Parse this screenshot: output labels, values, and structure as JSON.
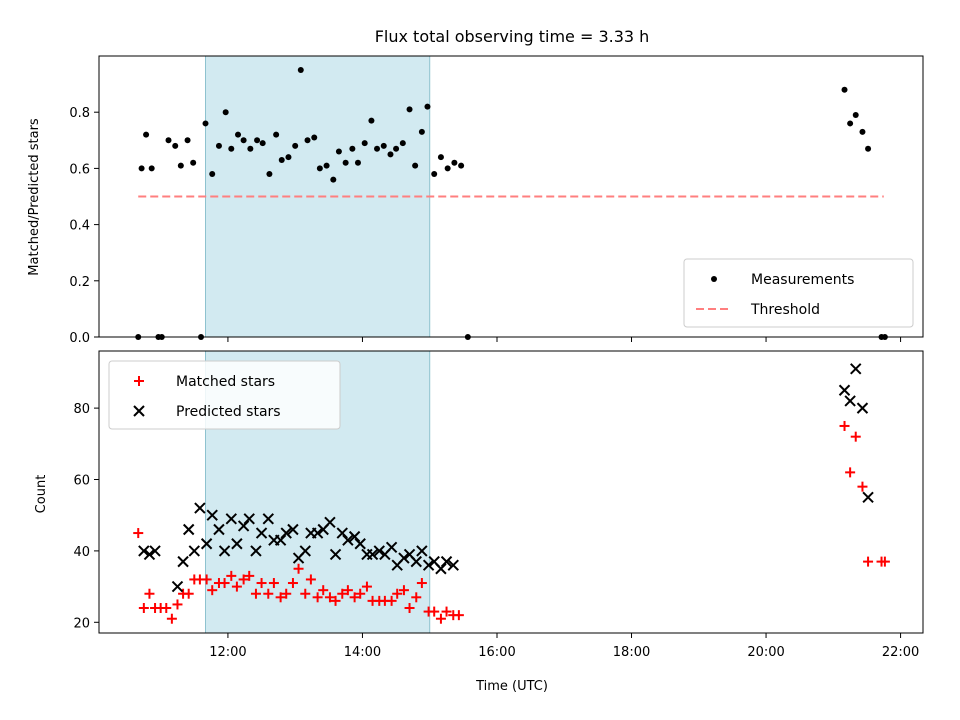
{
  "chart_data": [
    {
      "type": "scatter",
      "title": "Flux total observing time = 3.33 h",
      "xlabel": "",
      "ylabel": "Matched/Predicted stars",
      "xlim": [
        "10:05",
        "22:20"
      ],
      "ylim": [
        0,
        1.0
      ],
      "yticks": [
        "0.0",
        "0.2",
        "0.4",
        "0.6",
        "0.8"
      ],
      "shaded_interval": [
        "11:40",
        "15:00"
      ],
      "shade_color": "#add8e6",
      "legend": {
        "position": "lower-right",
        "entries": [
          "Measurements",
          "Threshold"
        ]
      },
      "series": [
        {
          "name": "Measurements",
          "marker": "dot",
          "color": "#000000",
          "points": [
            [
              "10:40",
              0.0
            ],
            [
              "10:43",
              0.6
            ],
            [
              "10:47",
              0.72
            ],
            [
              "10:52",
              0.6
            ],
            [
              "10:58",
              0.0
            ],
            [
              "11:01",
              0.0
            ],
            [
              "11:07",
              0.7
            ],
            [
              "11:13",
              0.68
            ],
            [
              "11:18",
              0.61
            ],
            [
              "11:24",
              0.7
            ],
            [
              "11:29",
              0.62
            ],
            [
              "11:36",
              0.0
            ],
            [
              "11:40",
              0.76
            ],
            [
              "11:46",
              0.58
            ],
            [
              "11:52",
              0.68
            ],
            [
              "11:58",
              0.8
            ],
            [
              "12:03",
              0.67
            ],
            [
              "12:09",
              0.72
            ],
            [
              "12:14",
              0.7
            ],
            [
              "12:20",
              0.67
            ],
            [
              "12:26",
              0.7
            ],
            [
              "12:31",
              0.69
            ],
            [
              "12:37",
              0.58
            ],
            [
              "12:43",
              0.72
            ],
            [
              "12:48",
              0.63
            ],
            [
              "12:54",
              0.64
            ],
            [
              "13:00",
              0.68
            ],
            [
              "13:05",
              0.95
            ],
            [
              "13:11",
              0.7
            ],
            [
              "13:17",
              0.71
            ],
            [
              "13:22",
              0.6
            ],
            [
              "13:28",
              0.61
            ],
            [
              "13:34",
              0.56
            ],
            [
              "13:39",
              0.66
            ],
            [
              "13:45",
              0.62
            ],
            [
              "13:51",
              0.67
            ],
            [
              "13:56",
              0.62
            ],
            [
              "14:02",
              0.69
            ],
            [
              "14:08",
              0.77
            ],
            [
              "14:13",
              0.67
            ],
            [
              "14:19",
              0.68
            ],
            [
              "14:25",
              0.65
            ],
            [
              "14:30",
              0.67
            ],
            [
              "14:36",
              0.69
            ],
            [
              "14:42",
              0.81
            ],
            [
              "14:47",
              0.61
            ],
            [
              "14:53",
              0.73
            ],
            [
              "14:58",
              0.82
            ],
            [
              "15:04",
              0.58
            ],
            [
              "15:10",
              0.64
            ],
            [
              "15:16",
              0.6
            ],
            [
              "15:22",
              0.62
            ],
            [
              "15:28",
              0.61
            ],
            [
              "15:34",
              0.0
            ],
            [
              "21:10",
              0.88
            ],
            [
              "21:15",
              0.76
            ],
            [
              "21:20",
              0.79
            ],
            [
              "21:26",
              0.73
            ],
            [
              "21:31",
              0.67
            ],
            [
              "21:43",
              0.0
            ],
            [
              "21:46",
              0.0
            ]
          ]
        },
        {
          "name": "Threshold",
          "style": "dashed",
          "color": "#ff7f7f",
          "points": [
            [
              "10:40",
              0.5
            ],
            [
              "21:45",
              0.5
            ]
          ]
        }
      ]
    },
    {
      "type": "scatter",
      "title": "",
      "xlabel": "Time (UTC)",
      "ylabel": "Count",
      "xlim": [
        "10:05",
        "22:20"
      ],
      "ylim": [
        17,
        96
      ],
      "yticks": [
        "20",
        "40",
        "60",
        "80"
      ],
      "xticks": [
        "12:00",
        "14:00",
        "16:00",
        "18:00",
        "20:00",
        "22:00"
      ],
      "shaded_interval": [
        "11:40",
        "15:00"
      ],
      "shade_color": "#add8e6",
      "legend": {
        "position": "upper-left",
        "entries": [
          "Matched stars",
          "Predicted stars"
        ]
      },
      "series": [
        {
          "name": "Matched stars",
          "marker": "plus",
          "color": "#ff0000",
          "points": [
            [
              "10:40",
              45
            ],
            [
              "10:45",
              24
            ],
            [
              "10:50",
              28
            ],
            [
              "10:55",
              24
            ],
            [
              "11:00",
              24
            ],
            [
              "11:05",
              24
            ],
            [
              "11:10",
              21
            ],
            [
              "11:15",
              25
            ],
            [
              "11:20",
              28
            ],
            [
              "11:25",
              28
            ],
            [
              "11:30",
              32
            ],
            [
              "11:35",
              32
            ],
            [
              "11:41",
              32
            ],
            [
              "11:46",
              29
            ],
            [
              "11:52",
              31
            ],
            [
              "11:57",
              31
            ],
            [
              "12:03",
              33
            ],
            [
              "12:08",
              30
            ],
            [
              "12:14",
              32
            ],
            [
              "12:19",
              33
            ],
            [
              "12:25",
              28
            ],
            [
              "12:30",
              31
            ],
            [
              "12:36",
              28
            ],
            [
              "12:41",
              31
            ],
            [
              "12:47",
              27
            ],
            [
              "12:52",
              28
            ],
            [
              "12:58",
              31
            ],
            [
              "13:03",
              35
            ],
            [
              "13:09",
              28
            ],
            [
              "13:14",
              32
            ],
            [
              "13:20",
              27
            ],
            [
              "13:25",
              29
            ],
            [
              "13:31",
              27
            ],
            [
              "13:36",
              26
            ],
            [
              "13:42",
              28
            ],
            [
              "13:47",
              29
            ],
            [
              "13:53",
              27
            ],
            [
              "13:58",
              28
            ],
            [
              "14:04",
              30
            ],
            [
              "14:09",
              26
            ],
            [
              "14:15",
              26
            ],
            [
              "14:20",
              26
            ],
            [
              "14:26",
              26
            ],
            [
              "14:31",
              28
            ],
            [
              "14:37",
              29
            ],
            [
              "14:42",
              24
            ],
            [
              "14:48",
              27
            ],
            [
              "14:53",
              31
            ],
            [
              "14:59",
              23
            ],
            [
              "15:04",
              23
            ],
            [
              "15:10",
              21
            ],
            [
              "15:15",
              23
            ],
            [
              "15:21",
              22
            ],
            [
              "15:26",
              22
            ],
            [
              "21:10",
              75
            ],
            [
              "21:15",
              62
            ],
            [
              "21:20",
              72
            ],
            [
              "21:26",
              58
            ],
            [
              "21:31",
              37
            ],
            [
              "21:43",
              37
            ],
            [
              "21:46",
              37
            ]
          ]
        },
        {
          "name": "Predicted stars",
          "marker": "x",
          "color": "#000000",
          "points": [
            [
              "10:45",
              40
            ],
            [
              "10:50",
              39
            ],
            [
              "10:55",
              40
            ],
            [
              "11:15",
              30
            ],
            [
              "11:20",
              37
            ],
            [
              "11:25",
              46
            ],
            [
              "11:30",
              40
            ],
            [
              "11:35",
              52
            ],
            [
              "11:41",
              42
            ],
            [
              "11:46",
              50
            ],
            [
              "11:52",
              46
            ],
            [
              "11:57",
              40
            ],
            [
              "12:03",
              49
            ],
            [
              "12:08",
              42
            ],
            [
              "12:14",
              47
            ],
            [
              "12:19",
              49
            ],
            [
              "12:25",
              40
            ],
            [
              "12:30",
              45
            ],
            [
              "12:36",
              49
            ],
            [
              "12:41",
              43
            ],
            [
              "12:47",
              43
            ],
            [
              "12:52",
              45
            ],
            [
              "12:58",
              46
            ],
            [
              "13:03",
              38
            ],
            [
              "13:09",
              40
            ],
            [
              "13:14",
              45
            ],
            [
              "13:20",
              45
            ],
            [
              "13:25",
              46
            ],
            [
              "13:31",
              48
            ],
            [
              "13:36",
              39
            ],
            [
              "13:42",
              45
            ],
            [
              "13:47",
              43
            ],
            [
              "13:53",
              44
            ],
            [
              "13:58",
              42
            ],
            [
              "14:04",
              39
            ],
            [
              "14:09",
              39
            ],
            [
              "14:15",
              40
            ],
            [
              "14:20",
              39
            ],
            [
              "14:26",
              41
            ],
            [
              "14:31",
              36
            ],
            [
              "14:37",
              38
            ],
            [
              "14:42",
              39
            ],
            [
              "14:48",
              37
            ],
            [
              "14:53",
              40
            ],
            [
              "14:59",
              36
            ],
            [
              "15:04",
              37
            ],
            [
              "15:10",
              35
            ],
            [
              "15:15",
              37
            ],
            [
              "15:21",
              36
            ],
            [
              "21:10",
              85
            ],
            [
              "21:15",
              82
            ],
            [
              "21:20",
              91
            ],
            [
              "21:26",
              80
            ],
            [
              "21:31",
              55
            ]
          ]
        }
      ]
    }
  ]
}
